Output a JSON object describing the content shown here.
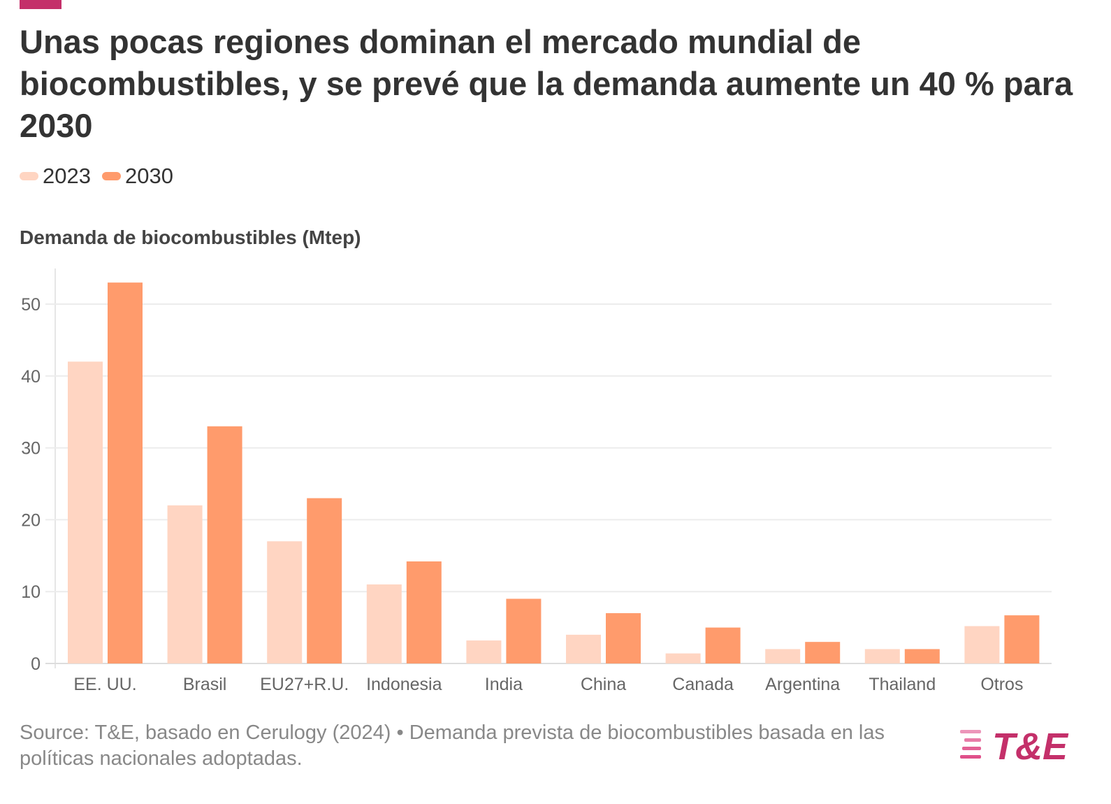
{
  "header": {
    "title": "Unas pocas regiones dominan el mercado mundial de biocombustibles, y se prevé que la demanda aumente un 40 % para 2030"
  },
  "legend": {
    "items": [
      {
        "label": "2023",
        "color": "#ffd5c2"
      },
      {
        "label": "2030",
        "color": "#ff9b6c"
      }
    ]
  },
  "chart_data": {
    "type": "bar",
    "title": "Unas pocas regiones dominan el mercado mundial de biocombustibles, y se prevé que la demanda aumente un 40 % para 2030",
    "ylabel": "Demanda de biocombustibles (Mtep)",
    "xlabel": "",
    "categories": [
      "EE. UU.",
      "Brasil",
      "EU27+R.U.",
      "Indonesia",
      "India",
      "China",
      "Canada",
      "Argentina",
      "Thailand",
      "Otros"
    ],
    "series": [
      {
        "name": "2023",
        "color": "#ffd5c2",
        "values": [
          42,
          22,
          17,
          11,
          3.2,
          4,
          1.4,
          2,
          2,
          5.2
        ]
      },
      {
        "name": "2030",
        "color": "#ff9b6c",
        "values": [
          53,
          33,
          23,
          14.2,
          9,
          7,
          5,
          3,
          2,
          6.7
        ]
      }
    ],
    "ylim": [
      0,
      55
    ],
    "yticks": [
      0,
      10,
      20,
      30,
      40,
      50
    ],
    "grid": true,
    "legend_position": "top-left"
  },
  "footer": {
    "source": "Source: T&E, basado en Cerulogy (2024) • Demanda prevista de biocombustibles basada en las políticas nacionales adoptadas.",
    "logo_text": "T&E",
    "logo_color": "#c4306a",
    "logo_accent": "#ff8a5b"
  }
}
